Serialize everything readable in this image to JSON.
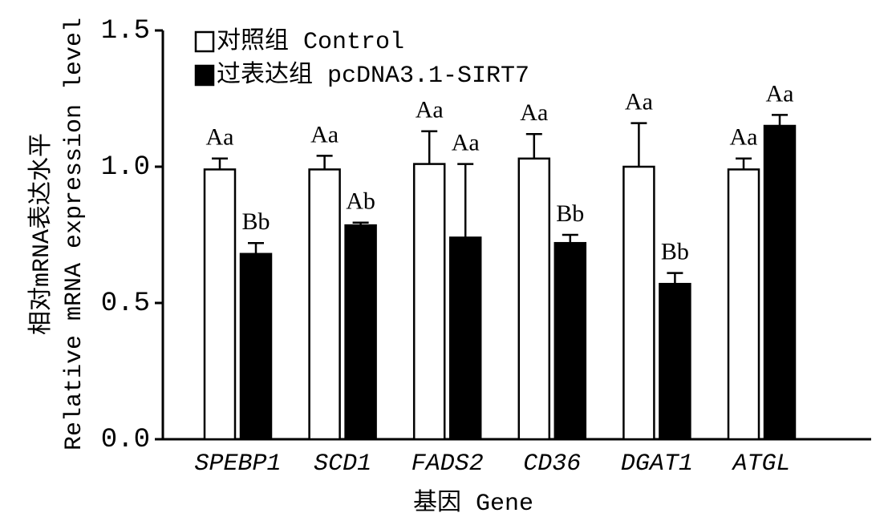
{
  "chart_data": {
    "type": "bar",
    "ylabel": [
      "相对mRNA表达水平",
      "Relative mRNA expression level"
    ],
    "xlabel": "基因 Gene",
    "categories": [
      "SPEBP1",
      "SCD1",
      "FADS2",
      "CD36",
      "DGAT1",
      "ATGL"
    ],
    "series": [
      {
        "name": "对照组 Control",
        "color": "#ffffff",
        "values": [
          0.99,
          0.99,
          1.01,
          1.03,
          1.0,
          0.99
        ],
        "errors": [
          0.04,
          0.05,
          0.12,
          0.09,
          0.16,
          0.04
        ],
        "significance_labels": [
          "Aa",
          "Aa",
          "Aa",
          "Aa",
          "Aa",
          "Aa"
        ]
      },
      {
        "name": "过表达组 pcDNA3.1-SIRT7",
        "color": "#000000",
        "values": [
          0.68,
          0.785,
          0.74,
          0.72,
          0.57,
          1.15
        ],
        "errors": [
          0.04,
          0.01,
          0.27,
          0.03,
          0.04,
          0.04
        ],
        "significance_labels": [
          "Bb",
          "Ab",
          "Aa",
          "Bb",
          "Bb",
          "Aa"
        ]
      }
    ],
    "ylim": [
      0,
      1.5
    ],
    "yticks": [
      {
        "value": 0,
        "label": "0.0"
      },
      0.5,
      {
        "value": 1,
        "label": "1.0"
      },
      1.5
    ],
    "legend": "top-left"
  }
}
